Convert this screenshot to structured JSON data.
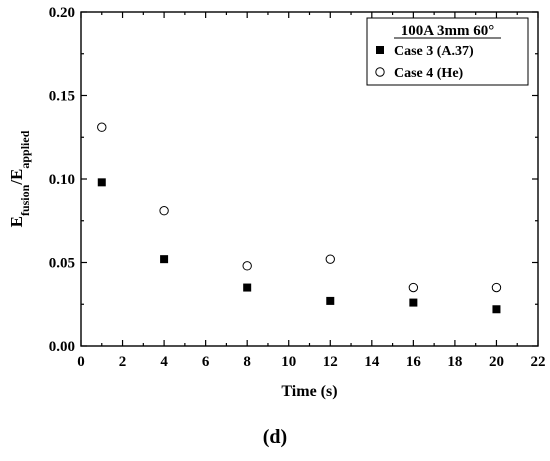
{
  "chart_data": {
    "type": "scatter",
    "xlabel": "Time (s)",
    "ylabel_main": "E",
    "ylabel_sub1": "fusion",
    "ylabel_sep": "/E",
    "ylabel_sub2": "applied",
    "xlim": [
      0,
      22
    ],
    "ylim": [
      0,
      0.2
    ],
    "xticks": [
      0,
      2,
      4,
      6,
      8,
      10,
      12,
      14,
      16,
      18,
      20,
      22
    ],
    "yticks": [
      0.0,
      0.05,
      0.1,
      0.15,
      0.2
    ],
    "ytick_labels": [
      "0.00",
      "0.05",
      "0.10",
      "0.15",
      "0.20"
    ],
    "legend_title": "100A 3mm 60°",
    "legend_position": "top-right",
    "grid": false,
    "series": [
      {
        "name": "Case 3 (A.37)",
        "marker": "filled-square",
        "x": [
          1,
          4,
          8,
          12,
          16,
          20
        ],
        "y": [
          0.098,
          0.052,
          0.035,
          0.027,
          0.026,
          0.022
        ]
      },
      {
        "name": "Case 4 (He)",
        "marker": "open-circle",
        "x": [
          1,
          4,
          8,
          12,
          16,
          20
        ],
        "y": [
          0.131,
          0.081,
          0.048,
          0.052,
          0.035,
          0.035
        ]
      }
    ],
    "panel_label": "(d)"
  }
}
